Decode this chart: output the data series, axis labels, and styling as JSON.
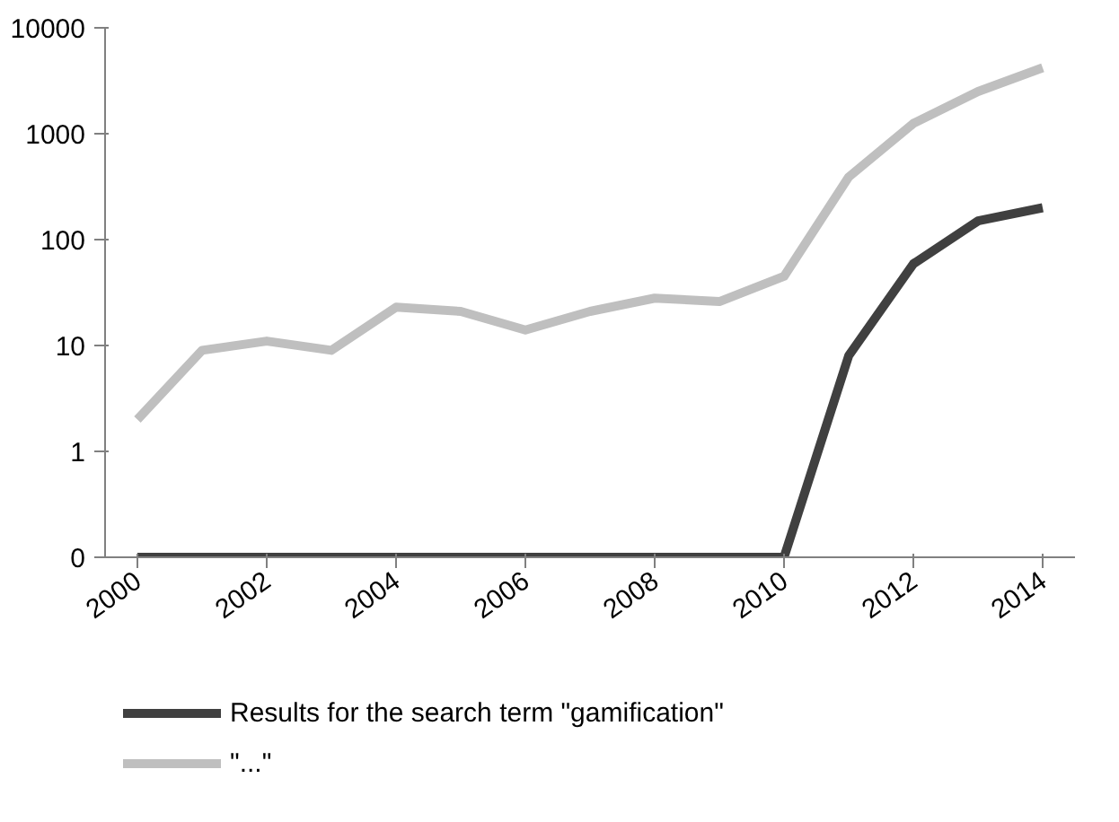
{
  "chart_data": {
    "type": "line",
    "log": true,
    "grid": false,
    "legend": "bottom",
    "marker": "none",
    "line_style": "solid",
    "x": [
      2000,
      2001,
      2002,
      2003,
      2004,
      2005,
      2006,
      2007,
      2008,
      2009,
      2010,
      2011,
      2012,
      2013,
      2014
    ],
    "xlim": [
      1999.5,
      2014.5
    ],
    "xticks": [
      2000,
      2002,
      2004,
      2006,
      2008,
      2010,
      2012,
      2014
    ],
    "ylim": [
      0.1,
      10000
    ],
    "yticks": [
      {
        "value": 0.1,
        "label": "0"
      },
      1,
      10,
      100,
      1000,
      10000
    ],
    "series": [
      {
        "name": "Results for the search term \"gamification\"",
        "color": "#404040",
        "values": [
          0.1,
          0.1,
          0.1,
          0.1,
          0.1,
          0.1,
          0.1,
          0.1,
          0.1,
          0.1,
          0.1,
          8,
          59,
          150,
          200
        ]
      },
      {
        "name": "\"...\"",
        "color": "#bfbfbf",
        "values": [
          2,
          9,
          11,
          9,
          23,
          21,
          14,
          21,
          28,
          26,
          45,
          390,
          1250,
          2500,
          4200
        ]
      }
    ]
  }
}
